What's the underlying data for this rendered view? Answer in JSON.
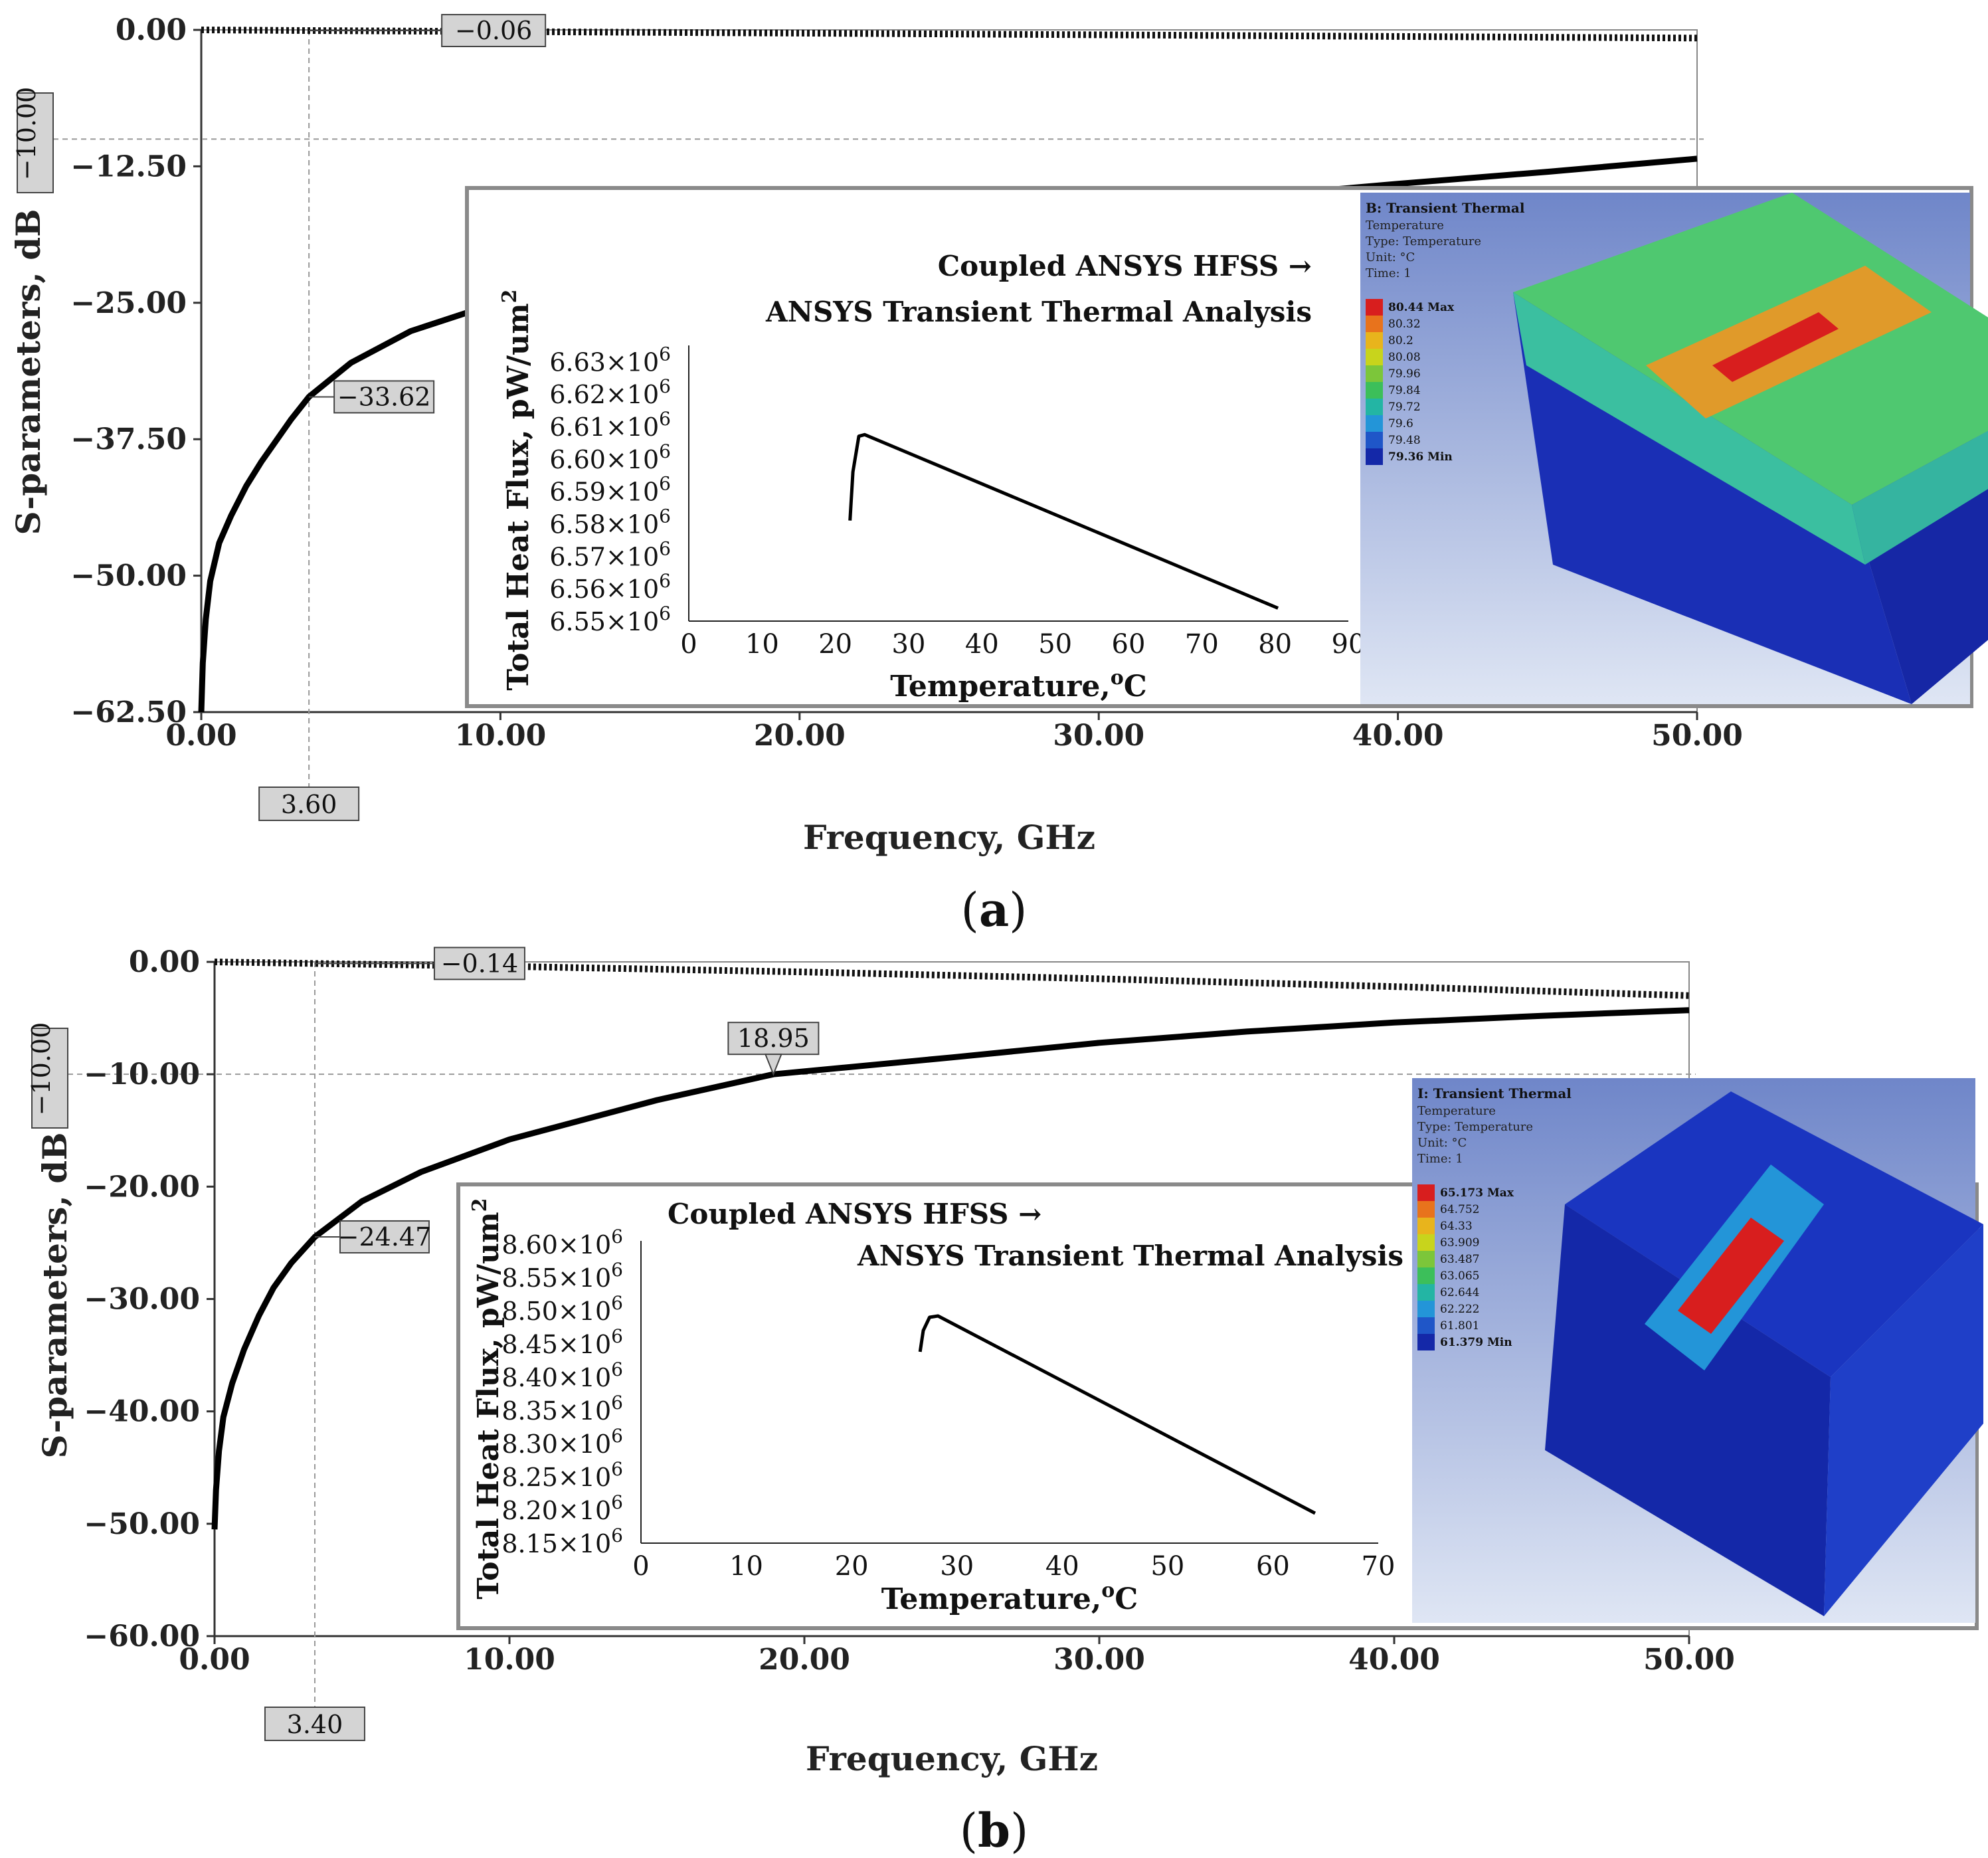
{
  "panels": [
    {
      "caption_letter": "a",
      "chart_data": {
        "type": "line",
        "xlabel": "Frequency, GHz",
        "ylabel": "S-parameters, dB",
        "xlim": [
          0,
          50
        ],
        "ylim": [
          -62.5,
          0
        ],
        "x_ticks": [
          "0.00",
          "10.00",
          "20.00",
          "30.00",
          "40.00",
          "50.00"
        ],
        "y_ticks": [
          "0.00",
          "−12.50",
          "−25.00",
          "−37.50",
          "−50.00",
          "−62.50"
        ],
        "reference_line": {
          "y": -10,
          "label": "−10.00"
        },
        "marker": {
          "x": 3.6,
          "label": "3.60"
        },
        "annotations": [
          {
            "x": 3.6,
            "y": -0.06,
            "label": "−0.06"
          },
          {
            "x": 3.6,
            "y": -33.62,
            "label": "−33.62"
          }
        ],
        "series": [
          {
            "style": "dotted",
            "x": [
              0,
              3.6,
              10,
              20,
              30,
              40,
              50
            ],
            "y": [
              0,
              -0.06,
              -0.15,
              -0.3,
              -0.45,
              -0.6,
              -0.75
            ]
          },
          {
            "style": "solid",
            "x": [
              0,
              0.05,
              0.15,
              0.3,
              0.6,
              1,
              1.5,
              2,
              3,
              3.6,
              5,
              7,
              10,
              15,
              20,
              25,
              30,
              35,
              40,
              45,
              50
            ],
            "y": [
              -62.5,
              -58,
              -54,
              -50.5,
              -47,
              -44.5,
              -41.8,
              -39.6,
              -35.7,
              -33.62,
              -30.5,
              -27.6,
              -24.9,
              -22.1,
              -20.0,
              -18.2,
              -16.7,
              -15.3,
              -14.1,
              -13.0,
              -11.8
            ]
          }
        ]
      },
      "inset": {
        "chart_data": {
          "type": "line",
          "title_line1": "Coupled ANSYS HFSS →",
          "title_line2": "ANSYS Transient Thermal Analysis",
          "xlabel": "Temperature,",
          "xlabel_unit": "C",
          "xlabel_degree": "o",
          "ylabel": "Total Heat Flux, pW/um",
          "ylabel_sup": "2",
          "xlim": [
            0,
            90
          ],
          "ylim": [
            6.55,
            6.635
          ],
          "x_ticks": [
            "0",
            "10",
            "20",
            "30",
            "40",
            "50",
            "60",
            "70",
            "80",
            "90"
          ],
          "y_ticks": [
            "6.55×10",
            "6.56×10",
            "6.57×10",
            "6.58×10",
            "6.59×10",
            "6.60×10",
            "6.61×10",
            "6.62×10",
            "6.63×10"
          ],
          "y_tick_values": [
            6.55,
            6.56,
            6.57,
            6.58,
            6.59,
            6.6,
            6.61,
            6.62,
            6.63
          ],
          "y_tick_exponent": "6",
          "series": [
            {
              "x": [
                22,
                22.4,
                23.2,
                24,
                80.4
              ],
              "y": [
                6.581,
                6.596,
                6.607,
                6.6075,
                6.554
              ]
            }
          ]
        },
        "thermal": {
          "title": "B: Transient Thermal",
          "meta": [
            "Temperature",
            "Type: Temperature",
            "Unit: °C",
            "Time: 1"
          ],
          "legend": [
            "80.44 Max",
            "80.32",
            "80.2",
            "80.08",
            "79.96",
            "79.84",
            "79.72",
            "79.6",
            "79.48",
            "79.36 Min"
          ],
          "legend_colors": [
            "#d81e1e",
            "#e8731c",
            "#e8b41c",
            "#c8d41c",
            "#7cc63a",
            "#3cbf5a",
            "#23b5a4",
            "#2395d8",
            "#1f56c8",
            "#1428a8"
          ]
        }
      }
    },
    {
      "caption_letter": "b",
      "chart_data": {
        "type": "line",
        "xlabel": "Frequency, GHz",
        "ylabel": "S-parameters, dB",
        "xlim": [
          0,
          50
        ],
        "ylim": [
          -60,
          0
        ],
        "x_ticks": [
          "0.00",
          "10.00",
          "20.00",
          "30.00",
          "40.00",
          "50.00"
        ],
        "y_ticks": [
          "0.00",
          "−10.00",
          "−20.00",
          "−30.00",
          "−40.00",
          "−50.00",
          "−60.00"
        ],
        "reference_line": {
          "y": -10,
          "label": "−10.00"
        },
        "marker": {
          "x": 3.4,
          "label": "3.40"
        },
        "annotations": [
          {
            "x": 3.4,
            "y": -0.14,
            "label": "−0.14"
          },
          {
            "x": 3.4,
            "y": -24.47,
            "label": "−24.47"
          },
          {
            "x": 18.95,
            "y": -10,
            "label": "18.95"
          }
        ],
        "series": [
          {
            "style": "dotted",
            "x": [
              0,
              3.4,
              10,
              20,
              30,
              40,
              50
            ],
            "y": [
              0,
              -0.14,
              -0.4,
              -0.9,
              -1.5,
              -2.2,
              -3.0
            ]
          },
          {
            "style": "solid",
            "x": [
              0,
              0.05,
              0.15,
              0.3,
              0.6,
              1,
              1.5,
              2,
              2.6,
              3.4,
              5,
              7,
              10,
              15,
              18.95,
              25,
              30,
              35,
              40,
              45,
              50
            ],
            "y": [
              -50.5,
              -47,
              -43.5,
              -40.5,
              -37.5,
              -34.5,
              -31.5,
              -29.0,
              -26.8,
              -24.47,
              -21.3,
              -18.7,
              -15.8,
              -12.3,
              -10.0,
              -8.5,
              -7.2,
              -6.2,
              -5.4,
              -4.8,
              -4.3
            ]
          }
        ]
      },
      "inset": {
        "chart_data": {
          "type": "line",
          "title_line1": "Coupled ANSYS HFSS →",
          "title_line2": "ANSYS Transient Thermal Analysis",
          "xlabel": "Temperature,",
          "xlabel_unit": "C",
          "xlabel_degree": "o",
          "ylabel": "Total Heat Flux, pW/um",
          "ylabel_sup": "2",
          "xlim": [
            0,
            70
          ],
          "ylim": [
            8.15,
            8.605
          ],
          "x_ticks": [
            "0",
            "10",
            "20",
            "30",
            "40",
            "50",
            "60",
            "70"
          ],
          "y_ticks": [
            "8.15×10",
            "8.20×10",
            "8.25×10",
            "8.30×10",
            "8.35×10",
            "8.40×10",
            "8.45×10",
            "8.50×10",
            "8.55×10",
            "8.60×10"
          ],
          "y_tick_values": [
            8.15,
            8.2,
            8.25,
            8.3,
            8.35,
            8.4,
            8.45,
            8.5,
            8.55,
            8.6
          ],
          "y_tick_exponent": "6",
          "series": [
            {
              "x": [
                26.5,
                26.8,
                27.4,
                28.2,
                64.0
              ],
              "y": [
                8.438,
                8.47,
                8.49,
                8.492,
                8.195
              ]
            }
          ]
        },
        "thermal": {
          "title": "I: Transient Thermal",
          "meta": [
            "Temperature",
            "Type: Temperature",
            "Unit: °C",
            "Time: 1"
          ],
          "legend": [
            "65.173 Max",
            "64.752",
            "64.33",
            "63.909",
            "63.487",
            "63.065",
            "62.644",
            "62.222",
            "61.801",
            "61.379 Min"
          ],
          "legend_colors": [
            "#d81e1e",
            "#e8731c",
            "#e8b41c",
            "#c8d41c",
            "#7cc63a",
            "#3cbf5a",
            "#23b5a4",
            "#2395d8",
            "#1f56c8",
            "#1428a8"
          ]
        }
      }
    }
  ]
}
